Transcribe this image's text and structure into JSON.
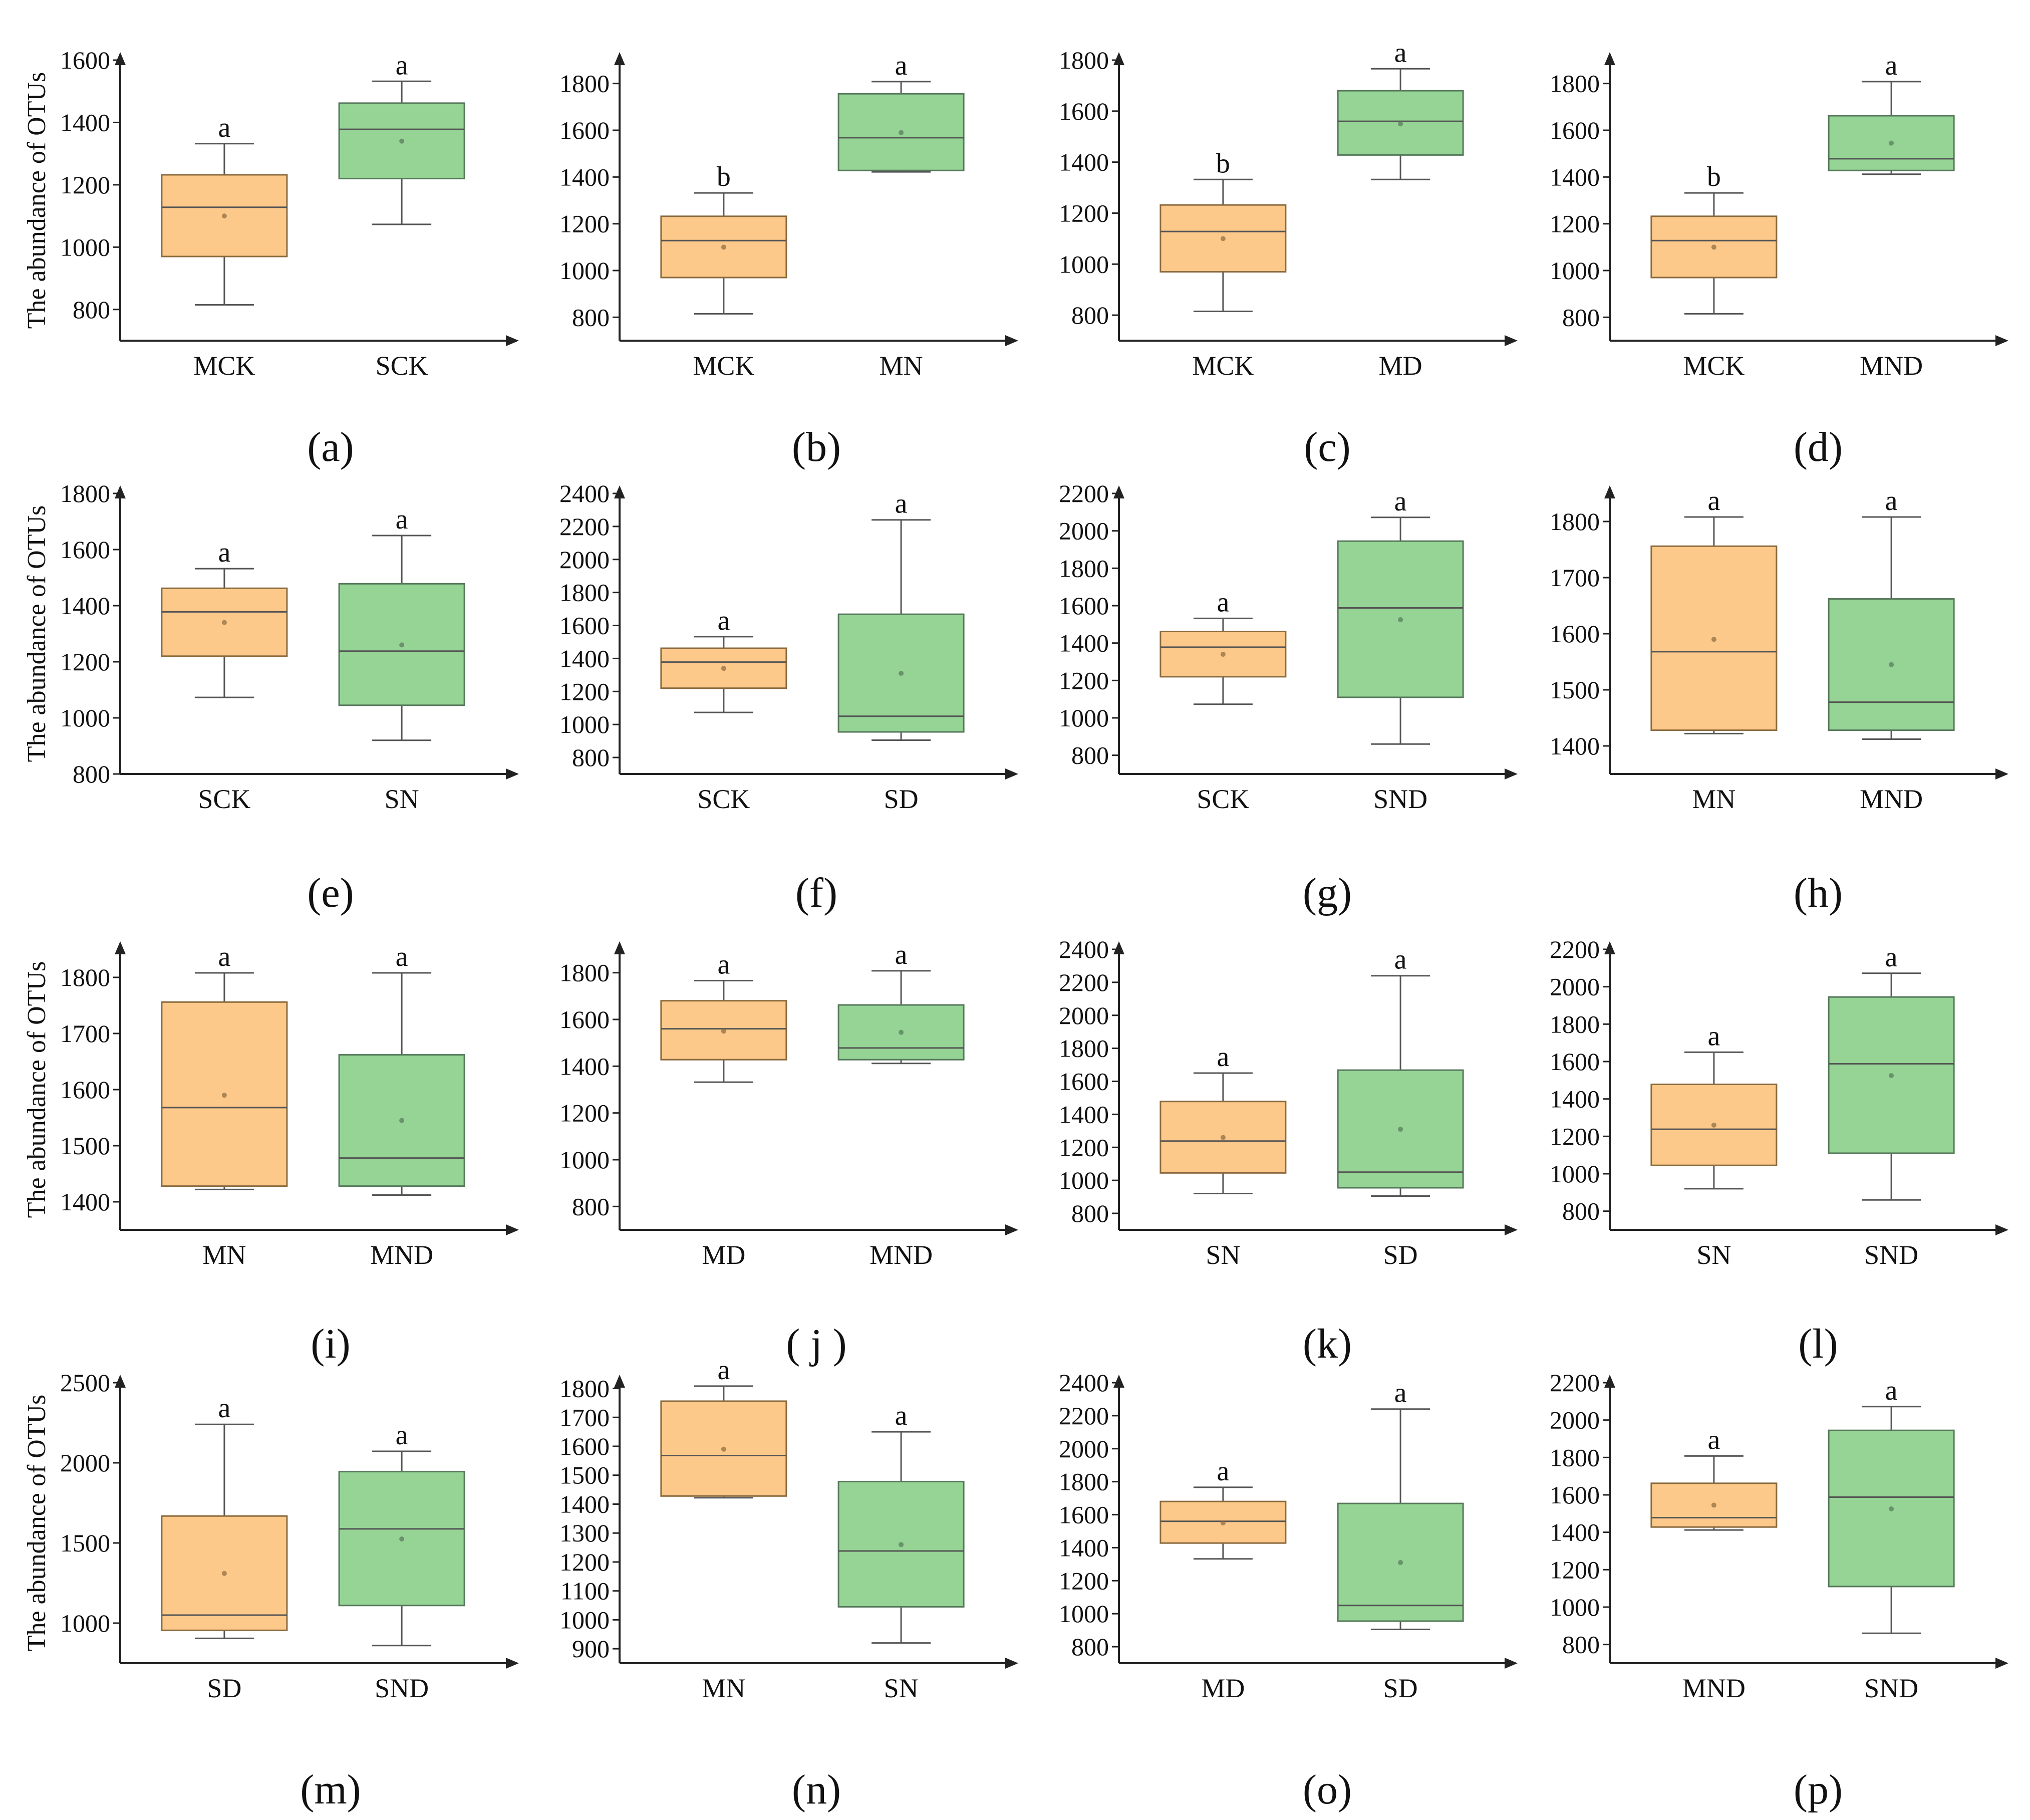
{
  "figure": {
    "y_axis_label": "The abundance of OTUs",
    "colors": {
      "box1_fill": "#fcc98a",
      "box1_stroke": "#8a6a3e",
      "box2_fill": "#95d495",
      "box2_stroke": "#55785a",
      "axis": "#222222"
    }
  },
  "chart_data": [
    {
      "id": "a",
      "type": "box",
      "panel_label": "(a)",
      "ylabel": "The abundance of OTUs",
      "ylim": [
        700,
        1600
      ],
      "yticks": [
        800,
        1000,
        1200,
        1400,
        1600
      ],
      "groups": [
        {
          "name": "MCK",
          "min": 815,
          "q1": 970,
          "median": 1128,
          "q3": 1232,
          "max": 1332,
          "mean": 1100,
          "sig": "a"
        },
        {
          "name": "SCK",
          "min": 1073,
          "q1": 1220,
          "median": 1378,
          "q3": 1462,
          "max": 1532,
          "mean": 1340,
          "sig": "a"
        }
      ]
    },
    {
      "id": "b",
      "type": "box",
      "panel_label": "(b)",
      "ylabel": "",
      "ylim": [
        700,
        1900
      ],
      "yticks": [
        800,
        1000,
        1200,
        1400,
        1600,
        1800
      ],
      "groups": [
        {
          "name": "MCK",
          "min": 815,
          "q1": 970,
          "median": 1128,
          "q3": 1232,
          "max": 1332,
          "mean": 1100,
          "sig": "b"
        },
        {
          "name": "MN",
          "min": 1422,
          "q1": 1428,
          "median": 1568,
          "q3": 1756,
          "max": 1808,
          "mean": 1590,
          "sig": "a"
        }
      ]
    },
    {
      "id": "c",
      "type": "box",
      "panel_label": "(c)",
      "ylabel": "",
      "ylim": [
        700,
        1800
      ],
      "yticks": [
        800,
        1000,
        1200,
        1400,
        1600,
        1800
      ],
      "groups": [
        {
          "name": "MCK",
          "min": 815,
          "q1": 970,
          "median": 1128,
          "q3": 1232,
          "max": 1332,
          "mean": 1100,
          "sig": "b"
        },
        {
          "name": "MD",
          "min": 1332,
          "q1": 1428,
          "median": 1560,
          "q3": 1680,
          "max": 1766,
          "mean": 1550,
          "sig": "a"
        }
      ]
    },
    {
      "id": "d",
      "type": "box",
      "panel_label": "(d)",
      "ylabel": "",
      "ylim": [
        700,
        1900
      ],
      "yticks": [
        800,
        1000,
        1200,
        1400,
        1600,
        1800
      ],
      "groups": [
        {
          "name": "MCK",
          "min": 815,
          "q1": 970,
          "median": 1128,
          "q3": 1232,
          "max": 1332,
          "mean": 1100,
          "sig": "b"
        },
        {
          "name": "MND",
          "min": 1412,
          "q1": 1428,
          "median": 1478,
          "q3": 1662,
          "max": 1808,
          "mean": 1545,
          "sig": "a"
        }
      ]
    },
    {
      "id": "e",
      "type": "box",
      "panel_label": "(e)",
      "ylabel": "The abundance of OTUs",
      "ylim": [
        800,
        1800
      ],
      "yticks": [
        800,
        1000,
        1200,
        1400,
        1600,
        1800
      ],
      "groups": [
        {
          "name": "SCK",
          "min": 1073,
          "q1": 1220,
          "median": 1378,
          "q3": 1462,
          "max": 1532,
          "mean": 1340,
          "sig": "a"
        },
        {
          "name": "SN",
          "min": 920,
          "q1": 1045,
          "median": 1238,
          "q3": 1478,
          "max": 1650,
          "mean": 1260,
          "sig": "a"
        }
      ]
    },
    {
      "id": "f",
      "type": "box",
      "panel_label": "(f)",
      "ylabel": "",
      "ylim": [
        700,
        2400
      ],
      "yticks": [
        800,
        1000,
        1200,
        1400,
        1600,
        1800,
        2000,
        2200,
        2400
      ],
      "groups": [
        {
          "name": "SCK",
          "min": 1073,
          "q1": 1220,
          "median": 1378,
          "q3": 1462,
          "max": 1532,
          "mean": 1340,
          "sig": "a"
        },
        {
          "name": "SD",
          "min": 905,
          "q1": 955,
          "median": 1050,
          "q3": 1668,
          "max": 2240,
          "mean": 1310,
          "sig": "a"
        }
      ]
    },
    {
      "id": "g",
      "type": "box",
      "panel_label": "(g)",
      "ylabel": "",
      "ylim": [
        700,
        2200
      ],
      "yticks": [
        800,
        1000,
        1200,
        1400,
        1600,
        1800,
        2000,
        2200
      ],
      "groups": [
        {
          "name": "SCK",
          "min": 1073,
          "q1": 1220,
          "median": 1378,
          "q3": 1462,
          "max": 1532,
          "mean": 1340,
          "sig": "a"
        },
        {
          "name": "SND",
          "min": 860,
          "q1": 1110,
          "median": 1588,
          "q3": 1945,
          "max": 2072,
          "mean": 1525,
          "sig": "a"
        }
      ]
    },
    {
      "id": "h",
      "type": "box",
      "panel_label": "(h)",
      "ylabel": "",
      "ylim": [
        1350,
        1850
      ],
      "yticks": [
        1400,
        1500,
        1600,
        1700,
        1800
      ],
      "groups": [
        {
          "name": "MN",
          "min": 1422,
          "q1": 1428,
          "median": 1568,
          "q3": 1756,
          "max": 1808,
          "mean": 1590,
          "sig": "a"
        },
        {
          "name": "MND",
          "min": 1412,
          "q1": 1428,
          "median": 1478,
          "q3": 1662,
          "max": 1808,
          "mean": 1545,
          "sig": "a"
        }
      ]
    },
    {
      "id": "i",
      "type": "box",
      "panel_label": "(i)",
      "ylabel": "The abundance of OTUs",
      "ylim": [
        1350,
        1850
      ],
      "yticks": [
        1400,
        1500,
        1600,
        1700,
        1800
      ],
      "groups": [
        {
          "name": "MN",
          "min": 1422,
          "q1": 1428,
          "median": 1568,
          "q3": 1756,
          "max": 1808,
          "mean": 1590,
          "sig": "a"
        },
        {
          "name": "MND",
          "min": 1412,
          "q1": 1428,
          "median": 1478,
          "q3": 1662,
          "max": 1808,
          "mean": 1545,
          "sig": "a"
        }
      ]
    },
    {
      "id": "j",
      "type": "box",
      "panel_label": "( j )",
      "ylabel": "",
      "ylim": [
        700,
        1900
      ],
      "yticks": [
        800,
        1000,
        1200,
        1400,
        1600,
        1800
      ],
      "groups": [
        {
          "name": "MD",
          "min": 1332,
          "q1": 1428,
          "median": 1560,
          "q3": 1680,
          "max": 1766,
          "mean": 1550,
          "sig": "a"
        },
        {
          "name": "MND",
          "min": 1412,
          "q1": 1428,
          "median": 1478,
          "q3": 1662,
          "max": 1808,
          "mean": 1545,
          "sig": "a"
        }
      ]
    },
    {
      "id": "k",
      "type": "box",
      "panel_label": "(k)",
      "ylabel": "",
      "ylim": [
        700,
        2400
      ],
      "yticks": [
        800,
        1000,
        1200,
        1400,
        1600,
        1800,
        2000,
        2200,
        2400
      ],
      "groups": [
        {
          "name": "SN",
          "min": 920,
          "q1": 1045,
          "median": 1238,
          "q3": 1478,
          "max": 1650,
          "mean": 1260,
          "sig": "a"
        },
        {
          "name": "SD",
          "min": 905,
          "q1": 955,
          "median": 1050,
          "q3": 1668,
          "max": 2240,
          "mean": 1310,
          "sig": "a"
        }
      ]
    },
    {
      "id": "l",
      "type": "box",
      "panel_label": "(l)",
      "ylabel": "",
      "ylim": [
        700,
        2200
      ],
      "yticks": [
        800,
        1000,
        1200,
        1400,
        1600,
        1800,
        2000,
        2200
      ],
      "groups": [
        {
          "name": "SN",
          "min": 920,
          "q1": 1045,
          "median": 1238,
          "q3": 1478,
          "max": 1650,
          "mean": 1260,
          "sig": "a"
        },
        {
          "name": "SND",
          "min": 860,
          "q1": 1110,
          "median": 1588,
          "q3": 1945,
          "max": 2072,
          "mean": 1525,
          "sig": "a"
        }
      ]
    },
    {
      "id": "m",
      "type": "box",
      "panel_label": "(m)",
      "ylabel": "The abundance of OTUs",
      "ylim": [
        750,
        2500
      ],
      "yticks": [
        1000,
        1500,
        2000,
        2500
      ],
      "groups": [
        {
          "name": "SD",
          "min": 905,
          "q1": 955,
          "median": 1050,
          "q3": 1668,
          "max": 2240,
          "mean": 1310,
          "sig": "a"
        },
        {
          "name": "SND",
          "min": 860,
          "q1": 1110,
          "median": 1588,
          "q3": 1945,
          "max": 2072,
          "mean": 1525,
          "sig": "a"
        }
      ]
    },
    {
      "id": "n",
      "type": "box",
      "panel_label": "(n)",
      "ylabel": "",
      "ylim": [
        850,
        1820
      ],
      "yticks": [
        900,
        1000,
        1100,
        1200,
        1300,
        1400,
        1500,
        1600,
        1700,
        1800
      ],
      "groups": [
        {
          "name": "MN",
          "min": 1422,
          "q1": 1428,
          "median": 1568,
          "q3": 1756,
          "max": 1808,
          "mean": 1590,
          "sig": "a"
        },
        {
          "name": "SN",
          "min": 920,
          "q1": 1045,
          "median": 1238,
          "q3": 1478,
          "max": 1650,
          "mean": 1260,
          "sig": "a"
        }
      ]
    },
    {
      "id": "o",
      "type": "box",
      "panel_label": "(o)",
      "ylabel": "",
      "ylim": [
        700,
        2400
      ],
      "yticks": [
        800,
        1000,
        1200,
        1400,
        1600,
        1800,
        2000,
        2200,
        2400
      ],
      "groups": [
        {
          "name": "MD",
          "min": 1332,
          "q1": 1428,
          "median": 1560,
          "q3": 1680,
          "max": 1766,
          "mean": 1550,
          "sig": "a"
        },
        {
          "name": "SD",
          "min": 905,
          "q1": 955,
          "median": 1050,
          "q3": 1668,
          "max": 2240,
          "mean": 1310,
          "sig": "a"
        }
      ]
    },
    {
      "id": "p",
      "type": "box",
      "panel_label": "(p)",
      "ylabel": "",
      "ylim": [
        700,
        2200
      ],
      "yticks": [
        800,
        1000,
        1200,
        1400,
        1600,
        1800,
        2000,
        2200
      ],
      "groups": [
        {
          "name": "MND",
          "min": 1412,
          "q1": 1428,
          "median": 1478,
          "q3": 1662,
          "max": 1808,
          "mean": 1545,
          "sig": "a"
        },
        {
          "name": "SND",
          "min": 860,
          "q1": 1110,
          "median": 1588,
          "q3": 1945,
          "max": 2072,
          "mean": 1525,
          "sig": "a"
        }
      ]
    }
  ]
}
